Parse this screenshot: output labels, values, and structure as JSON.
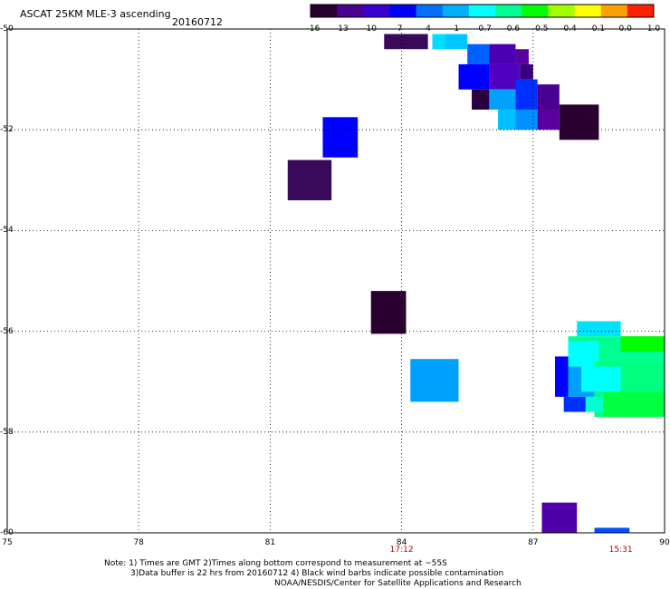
{
  "header": {
    "title": "ASCAT 25KM MLE-3 ascending",
    "date": "20160712"
  },
  "colorbar": {
    "labels": [
      "-16",
      "-13",
      "-10",
      "-7",
      "-4",
      "-1",
      "-0.7",
      "-0.6",
      "-0.5",
      "-0.4",
      "-0.1",
      "0.0",
      "1.0"
    ],
    "colors": [
      "#2a0030",
      "#4a0090",
      "#3a00d0",
      "#0000ff",
      "#0070ff",
      "#00b0ff",
      "#00ffff",
      "#00ff90",
      "#00ff00",
      "#a0ff00",
      "#ffff00",
      "#ffa000",
      "#ff2000"
    ]
  },
  "axes": {
    "x_ticks": [
      "75",
      "78",
      "81",
      "84",
      "87",
      "90"
    ],
    "y_ticks": [
      "-50",
      "-52",
      "-54",
      "-56",
      "-58",
      "-60"
    ],
    "x_range": [
      75,
      90
    ],
    "y_range": [
      -50,
      -60
    ],
    "times": [
      {
        "label": "17:12",
        "lon": 84.0
      },
      {
        "label": "15:31",
        "lon": 89.0
      }
    ]
  },
  "notes": {
    "line1": "Note: 1) Times are GMT 2)Times along bottom correspond to measurement at ~55S",
    "line2": "3)Data buffer is 22 hrs from 20160712 4) Black wind barbs indicate possible contamination",
    "line3": "NOAA/NESDIS/Center for Satellite Applications and Research"
  },
  "map_data": {
    "cells": [
      {
        "lon": [
          83.6,
          84.6
        ],
        "lat": [
          -50.1,
          -50.4
        ],
        "color": "#3a0a5a"
      },
      {
        "lon": [
          84.7,
          85.0
        ],
        "lat": [
          -50.1,
          -50.4
        ],
        "color": "#00ddff"
      },
      {
        "lon": [
          85.0,
          85.5
        ],
        "lat": [
          -50.1,
          -50.4
        ],
        "color": "#00c8ff"
      },
      {
        "lon": [
          85.5,
          86.0
        ],
        "lat": [
          -50.3,
          -50.7
        ],
        "color": "#0060ff"
      },
      {
        "lon": [
          86.0,
          86.6
        ],
        "lat": [
          -50.3,
          -50.7
        ],
        "color": "#4a00b0"
      },
      {
        "lon": [
          86.6,
          86.9
        ],
        "lat": [
          -50.4,
          -50.7
        ],
        "color": "#5a00a0"
      },
      {
        "lon": [
          85.3,
          86.0
        ],
        "lat": [
          -50.7,
          -51.2
        ],
        "color": "#0000ff"
      },
      {
        "lon": [
          86.0,
          86.7
        ],
        "lat": [
          -50.7,
          -51.2
        ],
        "color": "#5000c0"
      },
      {
        "lon": [
          86.7,
          87.0
        ],
        "lat": [
          -50.7,
          -51.0
        ],
        "color": "#3a0080"
      },
      {
        "lon": [
          85.6,
          86.0
        ],
        "lat": [
          -51.2,
          -51.6
        ],
        "color": "#2a0040"
      },
      {
        "lon": [
          86.0,
          86.6
        ],
        "lat": [
          -51.2,
          -51.6
        ],
        "color": "#00a0ff"
      },
      {
        "lon": [
          86.6,
          87.1
        ],
        "lat": [
          -51.0,
          -51.6
        ],
        "color": "#0030ff"
      },
      {
        "lon": [
          87.1,
          87.6
        ],
        "lat": [
          -51.1,
          -51.6
        ],
        "color": "#4a0090"
      },
      {
        "lon": [
          86.2,
          86.6
        ],
        "lat": [
          -51.6,
          -52.0
        ],
        "color": "#00c0ff"
      },
      {
        "lon": [
          86.6,
          87.1
        ],
        "lat": [
          -51.6,
          -52.0
        ],
        "color": "#0090ff"
      },
      {
        "lon": [
          87.1,
          87.6
        ],
        "lat": [
          -51.6,
          -52.0
        ],
        "color": "#5a00a0"
      },
      {
        "lon": [
          87.6,
          88.5
        ],
        "lat": [
          -51.5,
          -52.2
        ],
        "color": "#2a0030"
      },
      {
        "lon": [
          82.2,
          83.0
        ],
        "lat": [
          -51.75,
          -52.55
        ],
        "color": "#0000ff"
      },
      {
        "lon": [
          81.4,
          82.4
        ],
        "lat": [
          -52.6,
          -53.4
        ],
        "color": "#3a0a5a"
      },
      {
        "lon": [
          83.3,
          84.1
        ],
        "lat": [
          -55.2,
          -56.05
        ],
        "color": "#2a0030"
      },
      {
        "lon": [
          84.2,
          85.3
        ],
        "lat": [
          -56.55,
          -57.4
        ],
        "color": "#00a0ff"
      },
      {
        "lon": [
          87.2,
          88.0
        ],
        "lat": [
          -59.4,
          -60.0
        ],
        "color": "#5000a8"
      },
      {
        "lon": [
          88.4,
          89.2
        ],
        "lat": [
          -59.9,
          -60.0
        ],
        "color": "#0050ff"
      },
      {
        "lon": [
          88.0,
          89.0
        ],
        "lat": [
          -55.8,
          -56.1
        ],
        "color": "#00e0ff"
      },
      {
        "lon": [
          87.8,
          90.0
        ],
        "lat": [
          -56.1,
          -56.6
        ],
        "color": "#00ff90"
      },
      {
        "lon": [
          87.8,
          88.5
        ],
        "lat": [
          -56.2,
          -56.7
        ],
        "color": "#00ffff"
      },
      {
        "lon": [
          87.5,
          87.8
        ],
        "lat": [
          -56.5,
          -57.3
        ],
        "color": "#0000ff"
      },
      {
        "lon": [
          87.8,
          88.4
        ],
        "lat": [
          -56.7,
          -57.3
        ],
        "color": "#00a0ff"
      },
      {
        "lon": [
          88.4,
          90.0
        ],
        "lat": [
          -56.6,
          -57.7
        ],
        "color": "#00ff80"
      },
      {
        "lon": [
          88.1,
          89.0
        ],
        "lat": [
          -56.7,
          -57.2
        ],
        "color": "#00ffff"
      },
      {
        "lon": [
          87.7,
          88.2
        ],
        "lat": [
          -57.3,
          -57.6
        ],
        "color": "#0030ff"
      },
      {
        "lon": [
          88.2,
          88.6
        ],
        "lat": [
          -57.3,
          -57.6
        ],
        "color": "#00ffd0"
      },
      {
        "lon": [
          88.6,
          90.0
        ],
        "lat": [
          -57.2,
          -57.7
        ],
        "color": "#00ff40"
      },
      {
        "lon": [
          89.0,
          90.0
        ],
        "lat": [
          -56.1,
          -56.4
        ],
        "color": "#00ff00"
      }
    ]
  }
}
